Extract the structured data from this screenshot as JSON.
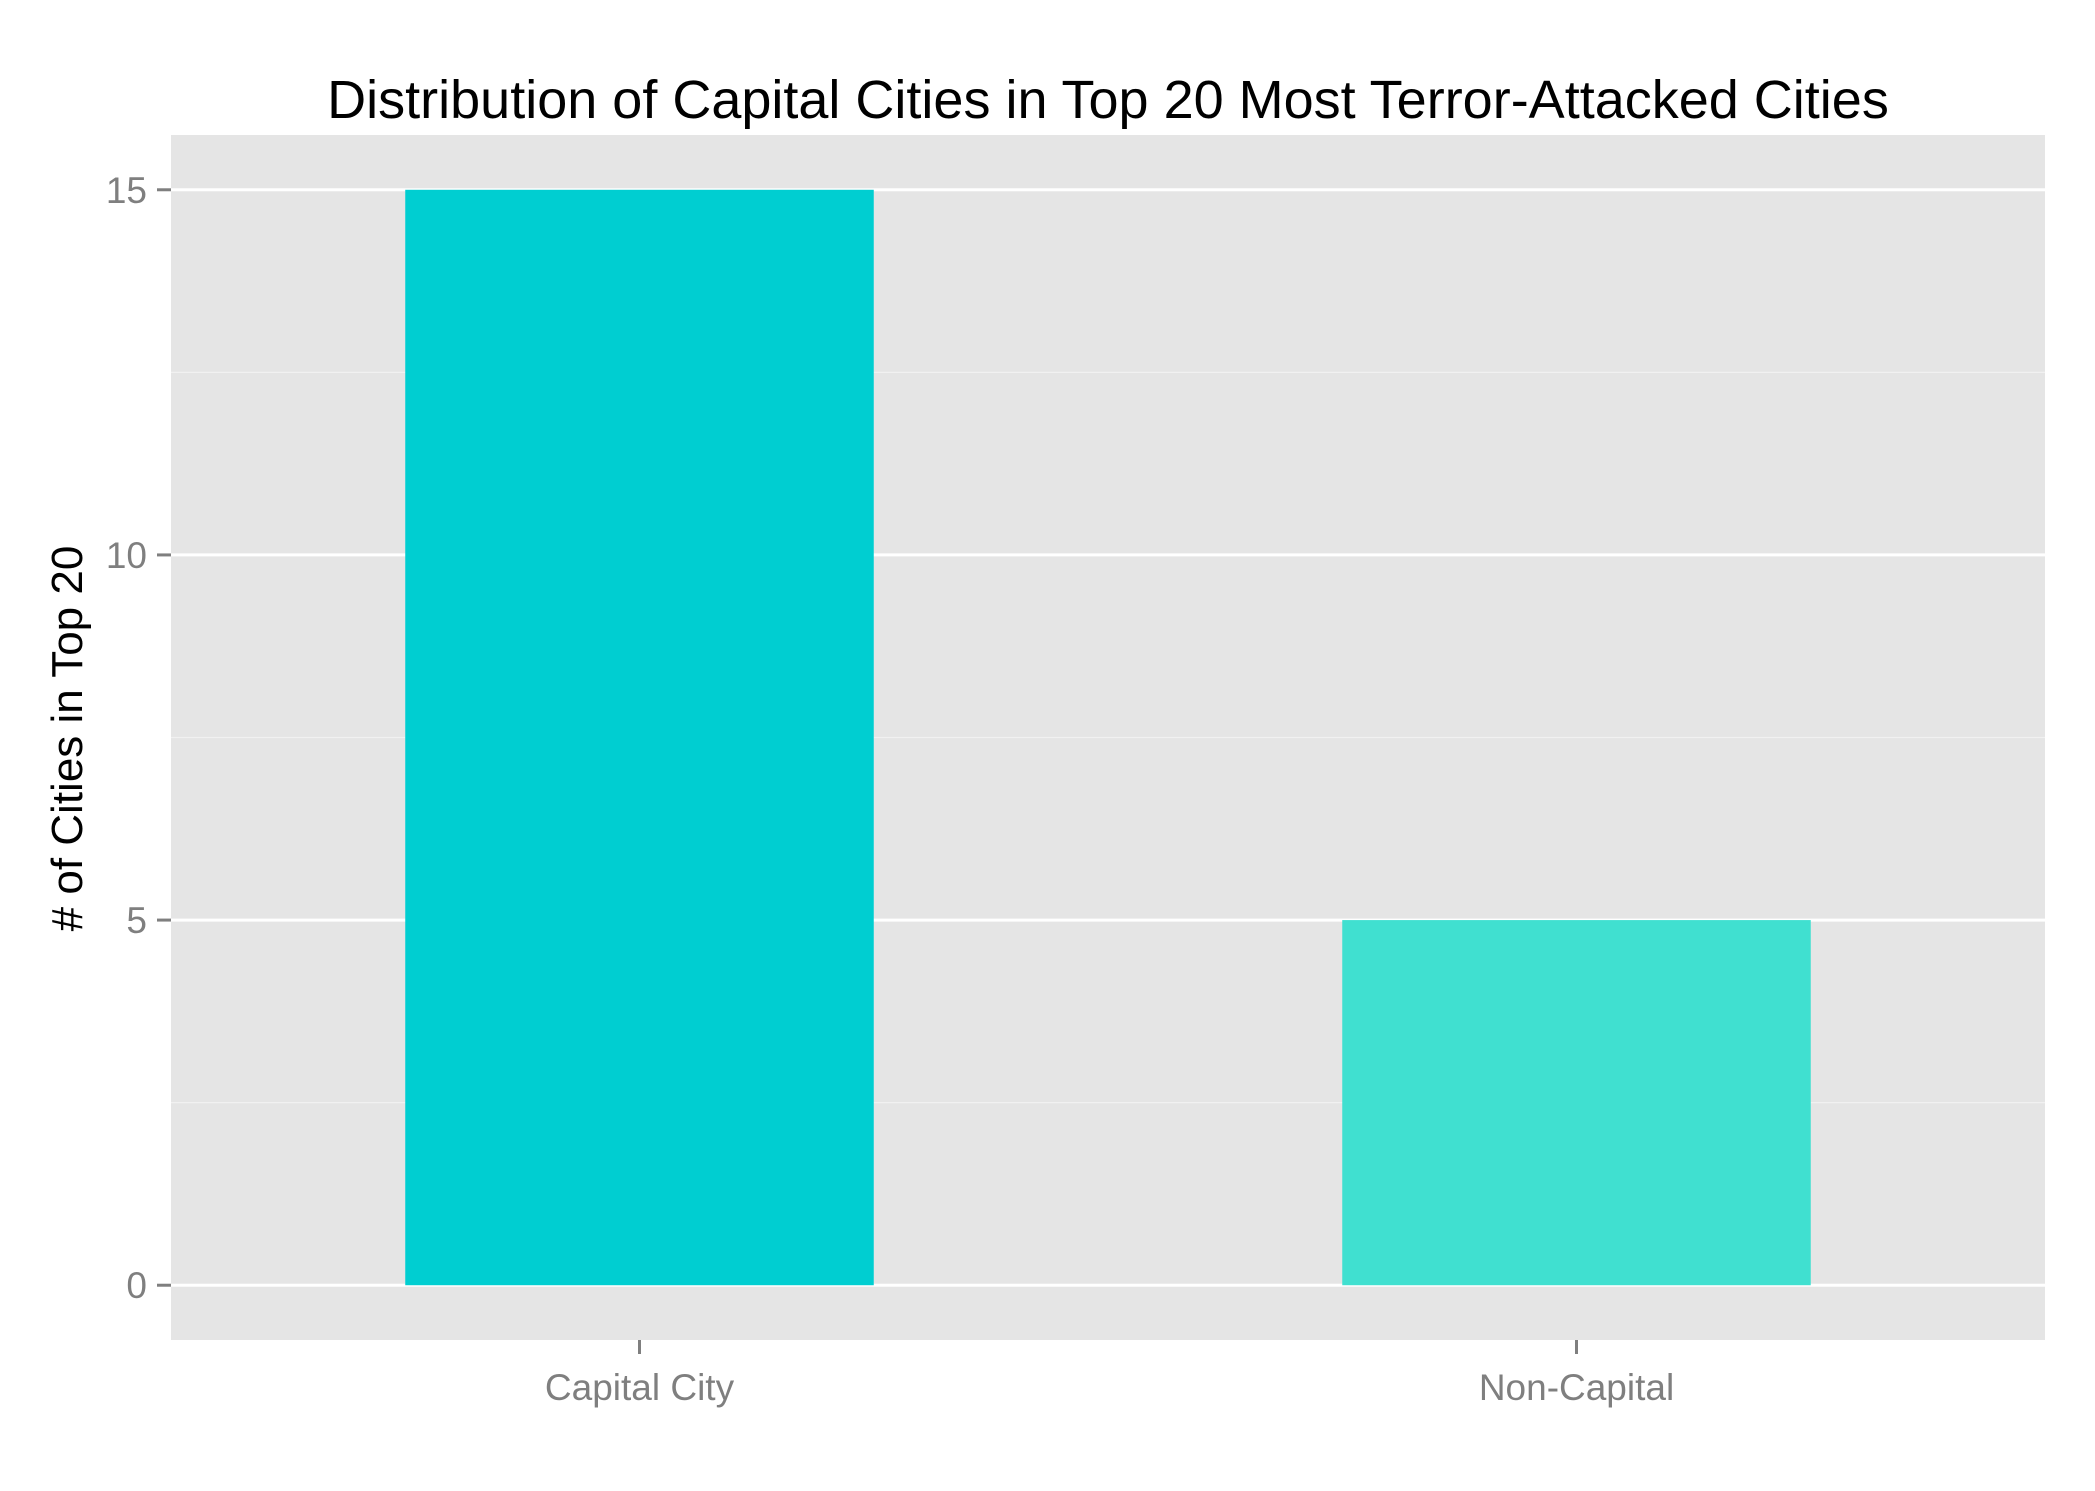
{
  "chart_data": {
    "type": "bar",
    "title": "Distribution of Capital Cities in Top 20 Most Terror-Attacked Cities",
    "xlabel": "",
    "ylabel": "# of Cities in Top 20",
    "categories": [
      "Capital City",
      "Non-Capital"
    ],
    "values": [
      15,
      5
    ],
    "bar_colors": [
      "#00CED1",
      "#40E0D0"
    ],
    "ylim": [
      -0.75,
      15.75
    ],
    "yticks": [
      0,
      5,
      10,
      15
    ],
    "ytick_labels": [
      "0",
      "5",
      "10",
      "15"
    ],
    "grid": true,
    "panel_background": "#E5E5E5",
    "grid_color": "#FFFFFF",
    "legend": "none"
  }
}
